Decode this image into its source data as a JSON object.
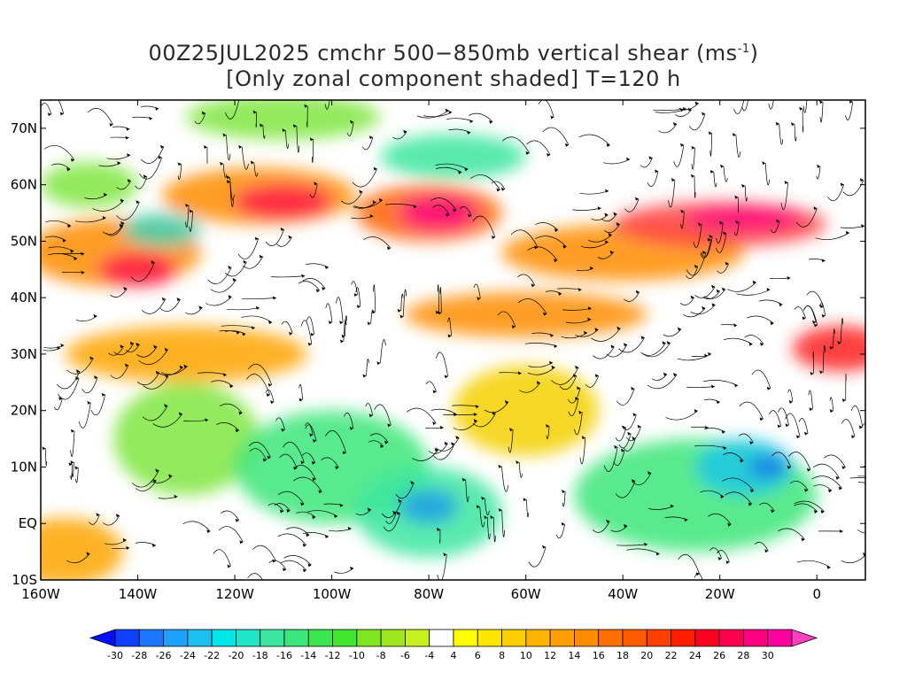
{
  "title": {
    "line1": "00Z25JUL2025 cmchr 500−850mb vertical shear (ms",
    "line1_sup": "-1",
    "line1_end": ")",
    "line2": "[Only zonal component shaded] T=120 h"
  },
  "map": {
    "lon_range": [
      -160,
      10
    ],
    "lat_range": [
      -10,
      75
    ],
    "lat_ticks": [
      {
        "lat": 70,
        "label": "70N"
      },
      {
        "lat": 60,
        "label": "60N"
      },
      {
        "lat": 50,
        "label": "50N"
      },
      {
        "lat": 40,
        "label": "40N"
      },
      {
        "lat": 30,
        "label": "30N"
      },
      {
        "lat": 20,
        "label": "20N"
      },
      {
        "lat": 10,
        "label": "10N"
      },
      {
        "lat": 0,
        "label": "EQ"
      },
      {
        "lat": -10,
        "label": "10S"
      }
    ],
    "lon_ticks": [
      {
        "lon": -160,
        "label": "160W"
      },
      {
        "lon": -140,
        "label": "140W"
      },
      {
        "lon": -120,
        "label": "120W"
      },
      {
        "lon": -100,
        "label": "100W"
      },
      {
        "lon": -80,
        "label": "80W"
      },
      {
        "lon": -60,
        "label": "60W"
      },
      {
        "lon": -40,
        "label": "40W"
      },
      {
        "lon": -20,
        "label": "20W"
      },
      {
        "lon": 0,
        "label": "0"
      }
    ],
    "shading_blobs": [
      {
        "lon": -145,
        "lat": 48,
        "rx": 18,
        "ry": 6,
        "color": "#ff8c00"
      },
      {
        "lon": -140,
        "lat": 45,
        "rx": 8,
        "ry": 3,
        "color": "#ff1a4a"
      },
      {
        "lon": -130,
        "lat": 30,
        "rx": 25,
        "ry": 5,
        "color": "#ffa500"
      },
      {
        "lon": -115,
        "lat": 58,
        "rx": 20,
        "ry": 5,
        "color": "#ff8c00"
      },
      {
        "lon": -110,
        "lat": 57,
        "rx": 10,
        "ry": 3,
        "color": "#ff1a4a"
      },
      {
        "lon": -80,
        "lat": 55,
        "rx": 15,
        "ry": 5,
        "color": "#ff6000"
      },
      {
        "lon": -78,
        "lat": 55,
        "rx": 8,
        "ry": 3,
        "color": "#ff0080"
      },
      {
        "lon": -40,
        "lat": 48,
        "rx": 25,
        "ry": 5,
        "color": "#ff8c00"
      },
      {
        "lon": -20,
        "lat": 53,
        "rx": 22,
        "ry": 4,
        "color": "#ff4040"
      },
      {
        "lon": -15,
        "lat": 54,
        "rx": 12,
        "ry": 2,
        "color": "#ff0080"
      },
      {
        "lon": -60,
        "lat": 37,
        "rx": 25,
        "ry": 4,
        "color": "#ff8c00"
      },
      {
        "lon": 5,
        "lat": 31,
        "rx": 10,
        "ry": 4,
        "color": "#ff2020"
      },
      {
        "lon": -60,
        "lat": 20,
        "rx": 15,
        "ry": 8,
        "color": "#f5d000"
      },
      {
        "lon": -155,
        "lat": -5,
        "rx": 12,
        "ry": 6,
        "color": "#ffa500"
      },
      {
        "lon": -130,
        "lat": 15,
        "rx": 15,
        "ry": 10,
        "color": "#7fe640"
      },
      {
        "lon": -100,
        "lat": 10,
        "rx": 20,
        "ry": 10,
        "color": "#3ce67a"
      },
      {
        "lon": -80,
        "lat": 2,
        "rx": 15,
        "ry": 8,
        "color": "#3ce6a0"
      },
      {
        "lon": -80,
        "lat": 3,
        "rx": 6,
        "ry": 3,
        "color": "#1ea0e6"
      },
      {
        "lon": -25,
        "lat": 5,
        "rx": 25,
        "ry": 10,
        "color": "#3ce67a"
      },
      {
        "lon": -15,
        "lat": 10,
        "rx": 10,
        "ry": 5,
        "color": "#20c8e6"
      },
      {
        "lon": -10,
        "lat": 10,
        "rx": 4,
        "ry": 2,
        "color": "#1e78e6"
      },
      {
        "lon": -110,
        "lat": 72,
        "rx": 20,
        "ry": 4,
        "color": "#7fe640"
      },
      {
        "lon": -75,
        "lat": 65,
        "rx": 15,
        "ry": 4,
        "color": "#3ce6a0"
      },
      {
        "lon": -150,
        "lat": 60,
        "rx": 10,
        "ry": 4,
        "color": "#7fe640"
      },
      {
        "lon": -135,
        "lat": 52,
        "rx": 8,
        "ry": 3,
        "color": "#40d0b0"
      }
    ]
  },
  "colorbar": {
    "colors": [
      "#0010ff",
      "#1040ff",
      "#1e78ff",
      "#1ea0ff",
      "#1ec0f0",
      "#00e6e6",
      "#20e6c8",
      "#3ce6a0",
      "#3ce67a",
      "#3ce650",
      "#40e630",
      "#7fe620",
      "#a0e620",
      "#c8f020",
      "#ffffff",
      "#ffff00",
      "#ffe600",
      "#ffd000",
      "#ffb400",
      "#ffa000",
      "#ff8c00",
      "#ff7000",
      "#ff5a00",
      "#ff4000",
      "#ff2000",
      "#ff0020",
      "#ff0050",
      "#ff0080",
      "#ff00a0",
      "#ff40c0"
    ],
    "labels": [
      "-30",
      "-28",
      "-26",
      "-24",
      "-22",
      "-20",
      "-18",
      "-16",
      "-14",
      "-12",
      "-10",
      "-8",
      "-6",
      "-4",
      "4",
      "6",
      "8",
      "10",
      "12",
      "14",
      "16",
      "18",
      "20",
      "22",
      "24",
      "26",
      "28",
      "30"
    ]
  }
}
